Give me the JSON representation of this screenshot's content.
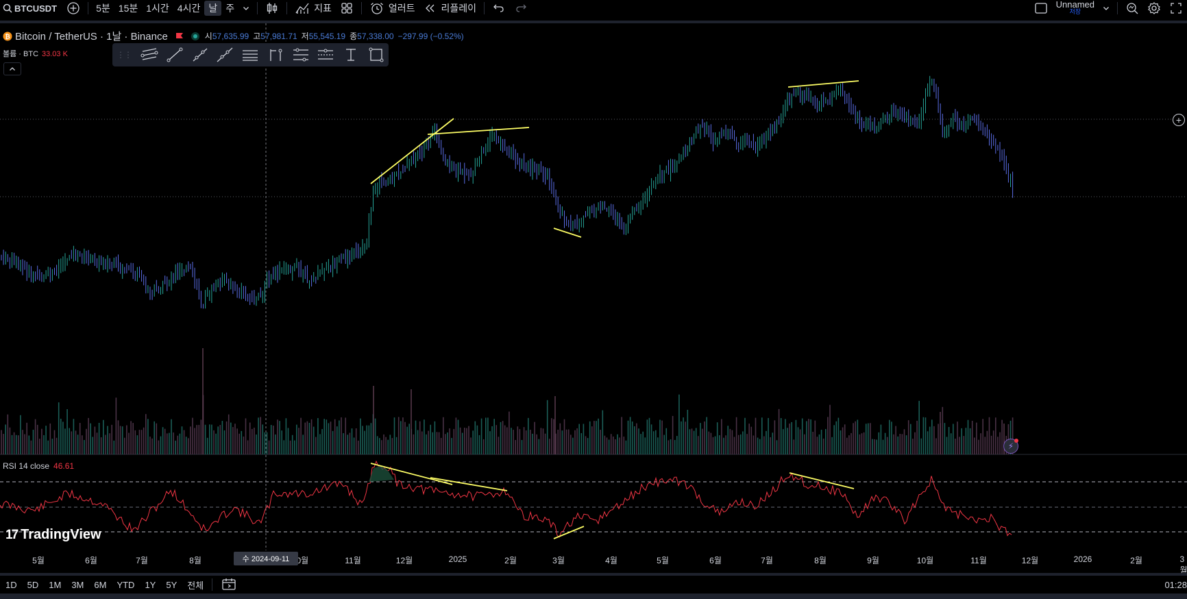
{
  "toolbar": {
    "symbol": "BTCUSDT",
    "intervals": [
      "5분",
      "15분",
      "1시간",
      "4시간",
      "날",
      "주"
    ],
    "active_interval": "날",
    "indicators_label": "지표",
    "alert_label": "얼러트",
    "replay_label": "리플레이",
    "layout_name": "Unnamed",
    "layout_status": "저장"
  },
  "legend": {
    "title": "Bitcoin / TetherUS · 1날 · Binance",
    "open_label": "시",
    "open": "57,635.99",
    "high_label": "고",
    "high": "57,981.71",
    "low_label": "저",
    "low": "55,545.19",
    "close_label": "종",
    "close": "57,338.00",
    "change": "−297.99 (−0.52%)"
  },
  "volume": {
    "label": "볼륨 · BTC",
    "value": "33.03 K"
  },
  "rsi": {
    "label": "RSI 14 close",
    "value": "46.61"
  },
  "brand": "TradingView",
  "time_axis": {
    "labels": [
      "5월",
      "6월",
      "7월",
      "8월",
      "10월",
      "11월",
      "12월",
      "2025",
      "2월",
      "3월",
      "4월",
      "5월",
      "6월",
      "7월",
      "8월",
      "9월",
      "10월",
      "11월",
      "12월",
      "2026",
      "2월",
      "3월"
    ],
    "crosshair_date": "수 2024-09-11"
  },
  "ranges": [
    "1D",
    "5D",
    "1M",
    "3M",
    "6M",
    "YTD",
    "1Y",
    "5Y",
    "전체"
  ],
  "clock": "01:28",
  "colors": {
    "up": "#26a69a",
    "down": "#5b6ee8",
    "rsi": "#f23645",
    "trend": "#ffff66",
    "accent": "#2962ff"
  },
  "chart_data": {
    "type": "candlestick",
    "series": [
      {
        "name": "BTCUSDT",
        "values": []
      },
      {
        "name": "RSI 14 close",
        "values": []
      }
    ]
  }
}
